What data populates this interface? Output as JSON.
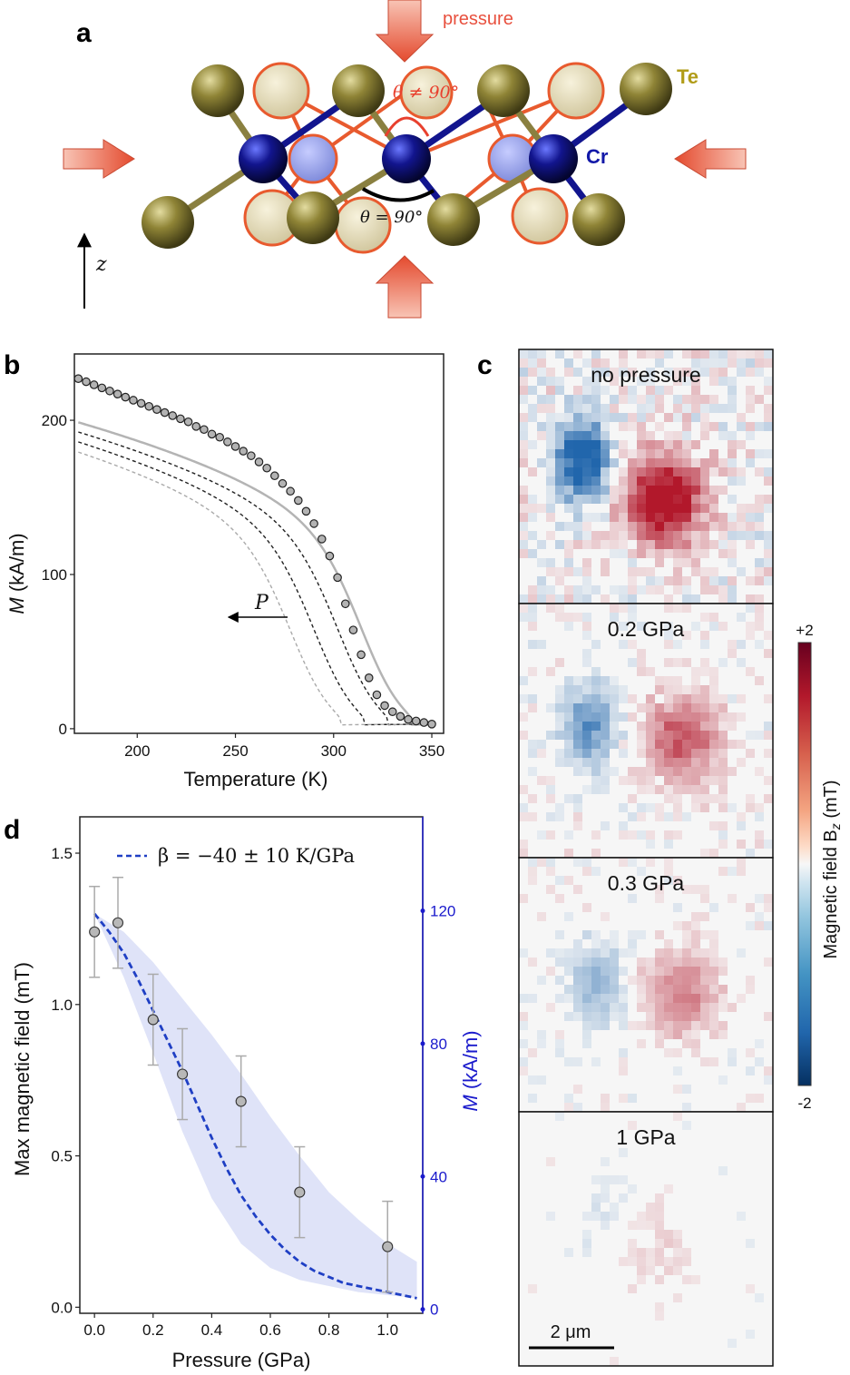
{
  "panels": {
    "a": "a",
    "b": "b",
    "c": "c",
    "d": "d"
  },
  "panel_a": {
    "pressure_label": "pressure",
    "te_label": "Te",
    "cr_label": "Cr",
    "angle_not90": "θ ≠ 90°",
    "angle_90": "θ = 90°",
    "z_label": "z",
    "colors": {
      "te": "#8f8436",
      "cr": "#12158e",
      "arrow": "#e8604a",
      "orange_ring": "#e85a2e",
      "te_text": "#b19c19",
      "cr_text": "#1219a8",
      "pressure_text": "#e8503e"
    }
  },
  "panel_c": {
    "maps": [
      {
        "label": "no pressure",
        "intensity": 1.0
      },
      {
        "label": "0.2 GPa",
        "intensity": 0.55
      },
      {
        "label": "0.3 GPa",
        "intensity": 0.4
      },
      {
        "label": "1 GPa",
        "intensity": 0.12
      }
    ],
    "scale_bar": "2 μm",
    "colorbar": {
      "max": "+2",
      "min": "-2",
      "label": "Magnetic field B",
      "label_sub": "z",
      "label_unit": " (mT)"
    },
    "colors": {
      "positive": "#b2182b",
      "negative": "#2166ac",
      "neutral": "#f7f7f7"
    }
  },
  "chart_data": [
    {
      "type": "scatter",
      "panel": "b",
      "xlabel": "Temperature (K)",
      "ylabel_italic": "M",
      "ylabel_rest": " (kA/m)",
      "xlim": [
        168,
        356
      ],
      "ylim": [
        -3,
        243
      ],
      "xticks": [
        200,
        250,
        300,
        350
      ],
      "yticks": [
        0,
        100,
        200
      ],
      "annotation": "P",
      "points": {
        "x": [
          170,
          174,
          178,
          182,
          186,
          190,
          194,
          198,
          202,
          206,
          210,
          214,
          218,
          222,
          226,
          230,
          234,
          238,
          242,
          246,
          250,
          254,
          258,
          262,
          266,
          270,
          274,
          278,
          282,
          286,
          290,
          294,
          298,
          302,
          306,
          310,
          314,
          318,
          322,
          326,
          330,
          334,
          338,
          342,
          346,
          350
        ],
        "y": [
          227,
          225,
          223,
          221,
          219,
          217,
          215,
          213,
          211,
          209,
          207,
          205,
          203,
          201,
          199,
          196,
          194,
          191,
          189,
          186,
          183,
          180,
          177,
          173,
          169,
          164,
          159,
          154,
          148,
          141,
          133,
          123,
          112,
          98,
          81,
          64,
          48,
          33,
          22,
          15,
          11,
          8,
          6,
          5,
          4,
          3
        ]
      },
      "fit": {
        "Tc": 318,
        "M0": 248,
        "beta": 0.32
      },
      "shifted_curves_dT": [
        -12,
        -24,
        -36
      ],
      "colors": {
        "points": "#b3b3b3",
        "fit": "#b4b4b4",
        "dashed_dark": "#222222",
        "dashed_light": "#aaaaaa"
      }
    },
    {
      "type": "scatter",
      "panel": "d",
      "xlabel": "Pressure (GPa)",
      "ylabel": "Max magnetic field (mT)",
      "y2label_italic": "M",
      "y2label_rest": " (kA/m)",
      "legend": "β = −40 ± 10 K/GPa",
      "xlim": [
        -0.05,
        1.12
      ],
      "ylim": [
        -0.02,
        1.62
      ],
      "y2lim": [
        -1.2,
        148.3
      ],
      "xticks": [
        0.0,
        0.2,
        0.4,
        0.6,
        0.8,
        1.0
      ],
      "yticks": [
        0.0,
        0.5,
        1.0,
        1.5
      ],
      "y2ticks": [
        0,
        40,
        80,
        120
      ],
      "points": {
        "x": [
          0.0,
          0.08,
          0.2,
          0.3,
          0.5,
          0.7,
          1.0
        ],
        "y": [
          1.24,
          1.27,
          0.95,
          0.77,
          0.68,
          0.38,
          0.2
        ],
        "err": [
          0.15,
          0.15,
          0.15,
          0.15,
          0.15,
          0.15,
          0.15
        ]
      },
      "curve": {
        "x": [
          0.0,
          0.05,
          0.1,
          0.15,
          0.2,
          0.25,
          0.3,
          0.35,
          0.4,
          0.45,
          0.5,
          0.55,
          0.6,
          0.65,
          0.7,
          0.75,
          0.8,
          0.85,
          0.9,
          0.95,
          1.0,
          1.05,
          1.1
        ],
        "y": [
          1.3,
          1.24,
          1.17,
          1.08,
          0.98,
          0.88,
          0.78,
          0.67,
          0.56,
          0.46,
          0.37,
          0.3,
          0.24,
          0.19,
          0.15,
          0.12,
          0.1,
          0.08,
          0.07,
          0.06,
          0.05,
          0.04,
          0.03
        ]
      },
      "band": {
        "x": [
          0.0,
          0.1,
          0.2,
          0.3,
          0.4,
          0.5,
          0.6,
          0.7,
          0.8,
          0.9,
          1.0,
          1.1
        ],
        "upper": [
          1.3,
          1.24,
          1.14,
          1.02,
          0.9,
          0.77,
          0.63,
          0.5,
          0.38,
          0.29,
          0.21,
          0.15
        ],
        "lower": [
          1.3,
          1.09,
          0.84,
          0.58,
          0.36,
          0.21,
          0.13,
          0.09,
          0.07,
          0.05,
          0.04,
          0.03
        ]
      },
      "colors": {
        "points": "#b8b8b8",
        "curve": "#1f3fc4",
        "band": "#dfe3f8",
        "right_axis": "#1a1acc"
      }
    }
  ]
}
